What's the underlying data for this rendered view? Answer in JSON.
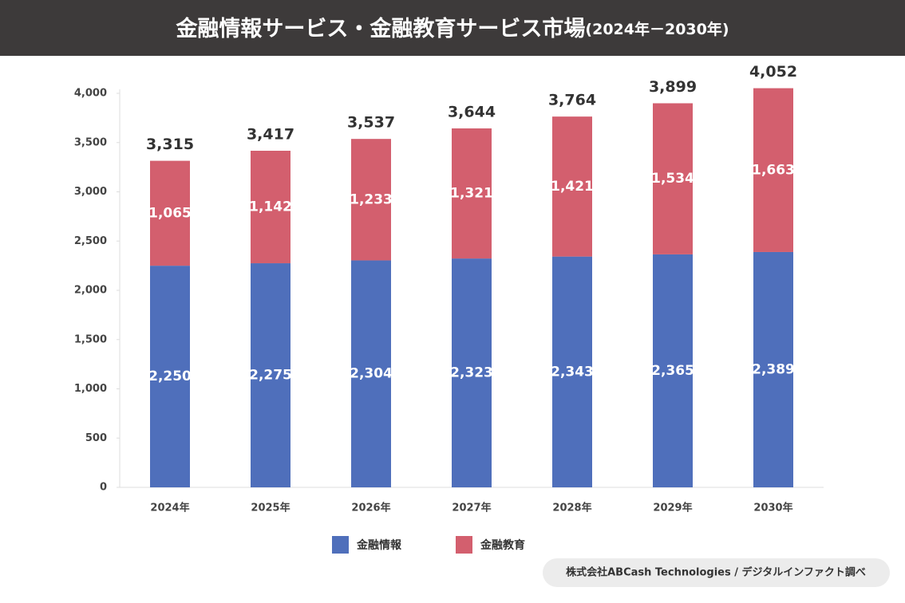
{
  "chart_data": {
    "type": "stacked_bar",
    "title": "金融情報サービス・金融教育サービス市場",
    "subtitle": "(2024年－2030年)",
    "categories": [
      "2024年",
      "2025年",
      "2026年",
      "2027年",
      "2028年",
      "2029年",
      "2030年"
    ],
    "series": [
      {
        "name": "金融情報",
        "color": "#4f6fbb",
        "values": [
          2250,
          2275,
          2304,
          2323,
          2343,
          2365,
          2389
        ],
        "value_labels": [
          "2,250",
          "2,275",
          "2,304",
          "2,323",
          "2,343",
          "2,365",
          "2,389"
        ]
      },
      {
        "name": "金融教育",
        "color": "#d35f6e",
        "values": [
          1065,
          1142,
          1233,
          1321,
          1421,
          1534,
          1663
        ],
        "value_labels": [
          "1,065",
          "1,142",
          "1,233",
          "1,321",
          "1,421",
          "1,534",
          "1,663"
        ]
      }
    ],
    "totals": {
      "values": [
        3315,
        3417,
        3537,
        3644,
        3764,
        3899,
        4052
      ],
      "value_labels": [
        "3,315",
        "3,417",
        "3,537",
        "3,644",
        "3,764",
        "3,899",
        "4,052"
      ]
    },
    "ylim": [
      0,
      4000
    ],
    "yticks": [
      0,
      500,
      {
        "value": 1000,
        "label": "1,000"
      },
      {
        "value": 1500,
        "label": "1,500"
      },
      {
        "value": 2000,
        "label": "2,000"
      },
      {
        "value": 2500,
        "label": "2,500"
      },
      {
        "value": 3000,
        "label": "3,000"
      },
      {
        "value": 3500,
        "label": "3,500"
      },
      {
        "value": 4000,
        "label": "4,000"
      }
    ],
    "grid": false,
    "legend": "bottom",
    "source": "株式会社ABCash Technologies / デジタルインファクト調べ"
  }
}
